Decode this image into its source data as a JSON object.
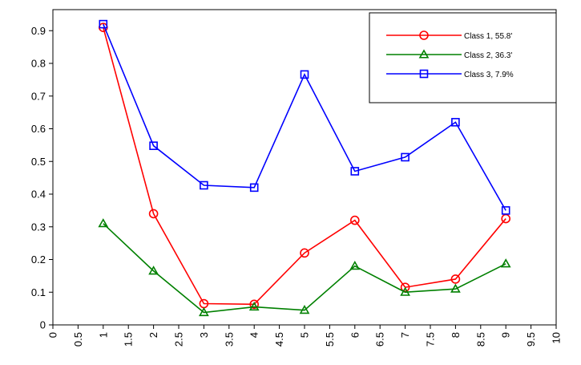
{
  "chart_data": {
    "type": "line",
    "title": "",
    "xlabel": "",
    "ylabel": "",
    "xlim": [
      0,
      10
    ],
    "ylim": [
      0,
      0.95
    ],
    "x_ticks": [
      "0",
      "0.5",
      "1",
      "1.5",
      "2",
      "2.5",
      "3",
      "3.5",
      "4",
      "4.5",
      "5",
      "5.5",
      "6",
      "6.5",
      "7",
      "7.5",
      "8",
      "8.5",
      "9",
      "9.5",
      "10"
    ],
    "y_ticks": [
      "0",
      "0.1",
      "0.2",
      "0.3",
      "0.4",
      "0.5",
      "0.6",
      "0.7",
      "0.8",
      "0.9"
    ],
    "grid": false,
    "legend_position": "top-right",
    "x": [
      1,
      2,
      3,
      4,
      5,
      6,
      7,
      8,
      9
    ],
    "series": [
      {
        "name": "Class 1, 55.8'",
        "color": "#ff0000",
        "marker": "circle",
        "values": [
          0.91,
          0.34,
          0.065,
          0.063,
          0.22,
          0.32,
          0.115,
          0.14,
          0.325
        ]
      },
      {
        "name": "Class 2, 36.3'",
        "color": "#008000",
        "marker": "triangle",
        "values": [
          0.31,
          0.165,
          0.038,
          0.055,
          0.045,
          0.18,
          0.1,
          0.11,
          0.187
        ]
      },
      {
        "name": "Class 3, 7.9%",
        "color": "#0000ff",
        "marker": "square",
        "values": [
          0.92,
          0.548,
          0.427,
          0.42,
          0.766,
          0.47,
          0.513,
          0.62,
          0.35
        ]
      }
    ]
  }
}
